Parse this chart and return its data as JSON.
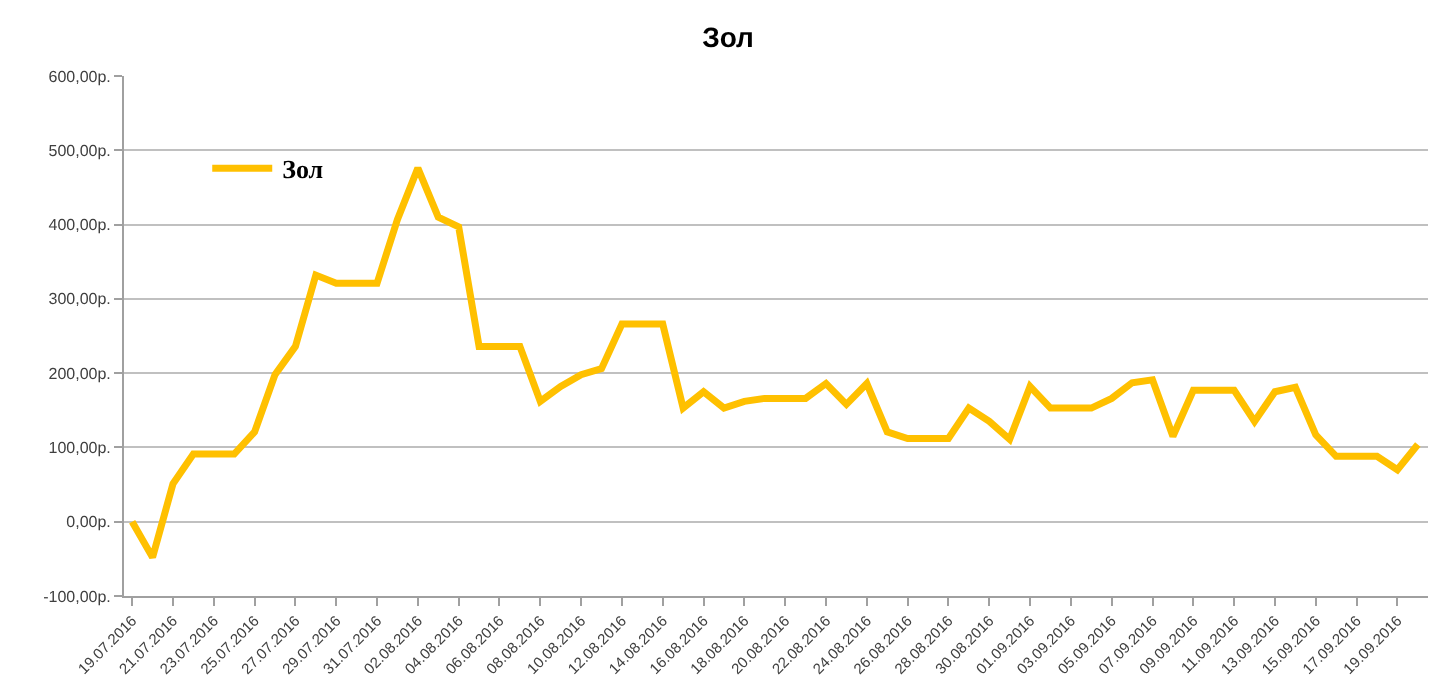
{
  "chart_data": {
    "type": "line",
    "title": "Зол",
    "categories": [
      "19.07.2016",
      null,
      "21.07.2016",
      null,
      "23.07.2016",
      null,
      "25.07.2016",
      null,
      "27.07.2016",
      null,
      "29.07.2016",
      null,
      "31.07.2016",
      null,
      "02.08.2016",
      null,
      "04.08.2016",
      null,
      "06.08.2016",
      null,
      "08.08.2016",
      null,
      "10.08.2016",
      null,
      "12.08.2016",
      null,
      "14.08.2016",
      null,
      "16.08.2016",
      null,
      "18.08.2016",
      null,
      "20.08.2016",
      null,
      "22.08.2016",
      null,
      "24.08.2016",
      null,
      "26.08.2016",
      null,
      "28.08.2016",
      null,
      "30.08.2016",
      null,
      "01.09.2016",
      null,
      "03.09.2016",
      null,
      "05.09.2016",
      null,
      "07.09.2016",
      null,
      "09.09.2016",
      null,
      "11.09.2016",
      null,
      "13.09.2016",
      null,
      "15.09.2016",
      null,
      "17.09.2016",
      null,
      "19.09.2016",
      null
    ],
    "series": [
      {
        "name": "Зол",
        "color": "#ffc000",
        "values": [
          0,
          -48,
          51,
          91,
          91,
          91,
          121,
          198,
          236,
          332,
          321,
          321,
          321,
          407,
          476,
          410,
          397,
          236,
          236,
          236,
          162,
          182,
          198,
          206,
          266,
          266,
          266,
          153,
          175,
          153,
          162,
          166,
          166,
          166,
          186,
          158,
          186,
          121,
          112,
          112,
          112,
          153,
          135,
          111,
          182,
          153,
          153,
          153,
          166,
          187,
          191,
          115,
          177,
          177,
          177,
          135,
          175,
          181,
          117,
          88,
          88,
          88,
          70,
          104
        ]
      }
    ],
    "ylim": [
      -100,
      600
    ],
    "yticks": [
      {
        "value": -100,
        "label": "-100,00р."
      },
      {
        "value": 0,
        "label": "0,00р."
      },
      {
        "value": 100,
        "label": "100,00р."
      },
      {
        "value": 200,
        "label": "200,00р."
      },
      {
        "value": 300,
        "label": "300,00р."
      },
      {
        "value": 400,
        "label": "400,00р."
      },
      {
        "value": 500,
        "label": "500,00р."
      },
      {
        "value": 600,
        "label": "600,00р."
      }
    ],
    "grid": "y",
    "legend": "top left",
    "marker": "none",
    "line_style": "solid"
  }
}
